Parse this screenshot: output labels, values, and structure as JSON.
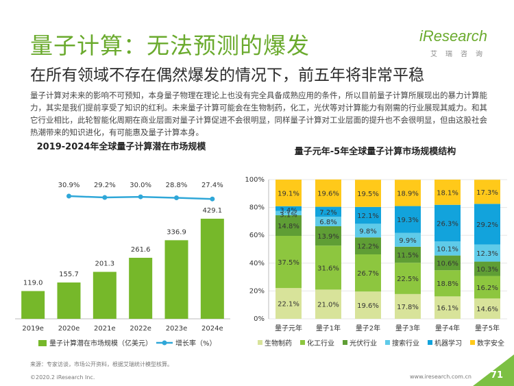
{
  "header": {
    "title": "量子计算：无法预测的爆发",
    "subtitle": "在所有领域不存在偶然爆发的情况下，前五年将非常平稳",
    "logo_main": "iResearch",
    "logo_sub": "艾瑞咨询"
  },
  "body_text": "量子计算对未来的影响不可预知，本身量子物理在理论上也没有完全具备成熟应用的条件，所以目前量子计算所展现出的暴力计算能力，其实是我们提前享受了知识的红利。未来量子计算可能会在生物制药，化工，光伏等对计算能力有刚需的行业展现其威力。和其它行业相比，此轮智能化周期在商业层面对量子计算促进不会很明显，同样量子计算对工业层面的提升也不会很明显，但由这股社会热潮带来的知识进化，有可能惠及量子计算本身。",
  "footer": {
    "source": "来源：专家访谈，市场公开资料，根据艾瑞统计模型核算。",
    "copyright": "©2020.2 iResearch Inc.",
    "url": "www.iresearch.com.cn",
    "page": "71"
  },
  "colors": {
    "brand_green": "#6aaa2d",
    "bar_green": "#76b82a",
    "line_blue": "#2fa7d8"
  },
  "chart_data": [
    {
      "type": "bar",
      "title": "2019-2024年全球量子计算潜在市场规模",
      "categories": [
        "2019e",
        "2020e",
        "2021e",
        "2022e",
        "2023e",
        "2024e"
      ],
      "series": [
        {
          "name": "量子计算潜在市场规模（亿美元）",
          "type": "bar",
          "values": [
            119.0,
            155.7,
            201.3,
            261.6,
            336.9,
            429.1
          ],
          "color": "#76b82a"
        },
        {
          "name": "增长率（%）",
          "type": "line",
          "values": [
            null,
            30.9,
            29.2,
            30.0,
            28.8,
            27.4
          ],
          "color": "#2fa7d8"
        }
      ],
      "value_labels": [
        "119.0",
        "155.7",
        "201.3",
        "261.6",
        "336.9",
        "429.1"
      ],
      "rate_labels": [
        "",
        "30.9%",
        "29.2%",
        "30.0%",
        "28.8%",
        "27.4%"
      ],
      "legend_position": "bottom"
    },
    {
      "type": "bar",
      "stacked": true,
      "title": "量子元年-5年全球量子计算市场规模结构",
      "categories": [
        "量子元年",
        "量子1年",
        "量子2年",
        "量子3年",
        "量子4年",
        "量子5年"
      ],
      "y_ticks": [
        "0%",
        "20%",
        "40%",
        "60%",
        "80%",
        "100%"
      ],
      "ylim": [
        0,
        100
      ],
      "series": [
        {
          "name": "生物制药",
          "color": "#d8e39a",
          "values": [
            22.1,
            21.0,
            19.6,
            17.8,
            16.1,
            14.6
          ]
        },
        {
          "name": "化工行业",
          "color": "#8dc63f",
          "values": [
            37.5,
            31.6,
            26.7,
            22.5,
            18.8,
            16.2
          ]
        },
        {
          "name": "光伏行业",
          "color": "#5f9e35",
          "values": [
            14.8,
            13.9,
            12.2,
            11.5,
            10.6,
            10.3
          ]
        },
        {
          "name": "搜索行业",
          "color": "#5fcbe9",
          "values": [
            3.1,
            6.8,
            9.8,
            9.9,
            10.1,
            12.3
          ]
        },
        {
          "name": "机器学习",
          "color": "#12a3dc",
          "values": [
            3.4,
            7.2,
            12.1,
            19.3,
            26.3,
            29.2
          ]
        },
        {
          "name": "数字安全",
          "color": "#ffc91a",
          "values": [
            19.1,
            19.6,
            19.5,
            18.9,
            18.1,
            17.3
          ]
        }
      ],
      "legend_position": "bottom"
    }
  ]
}
